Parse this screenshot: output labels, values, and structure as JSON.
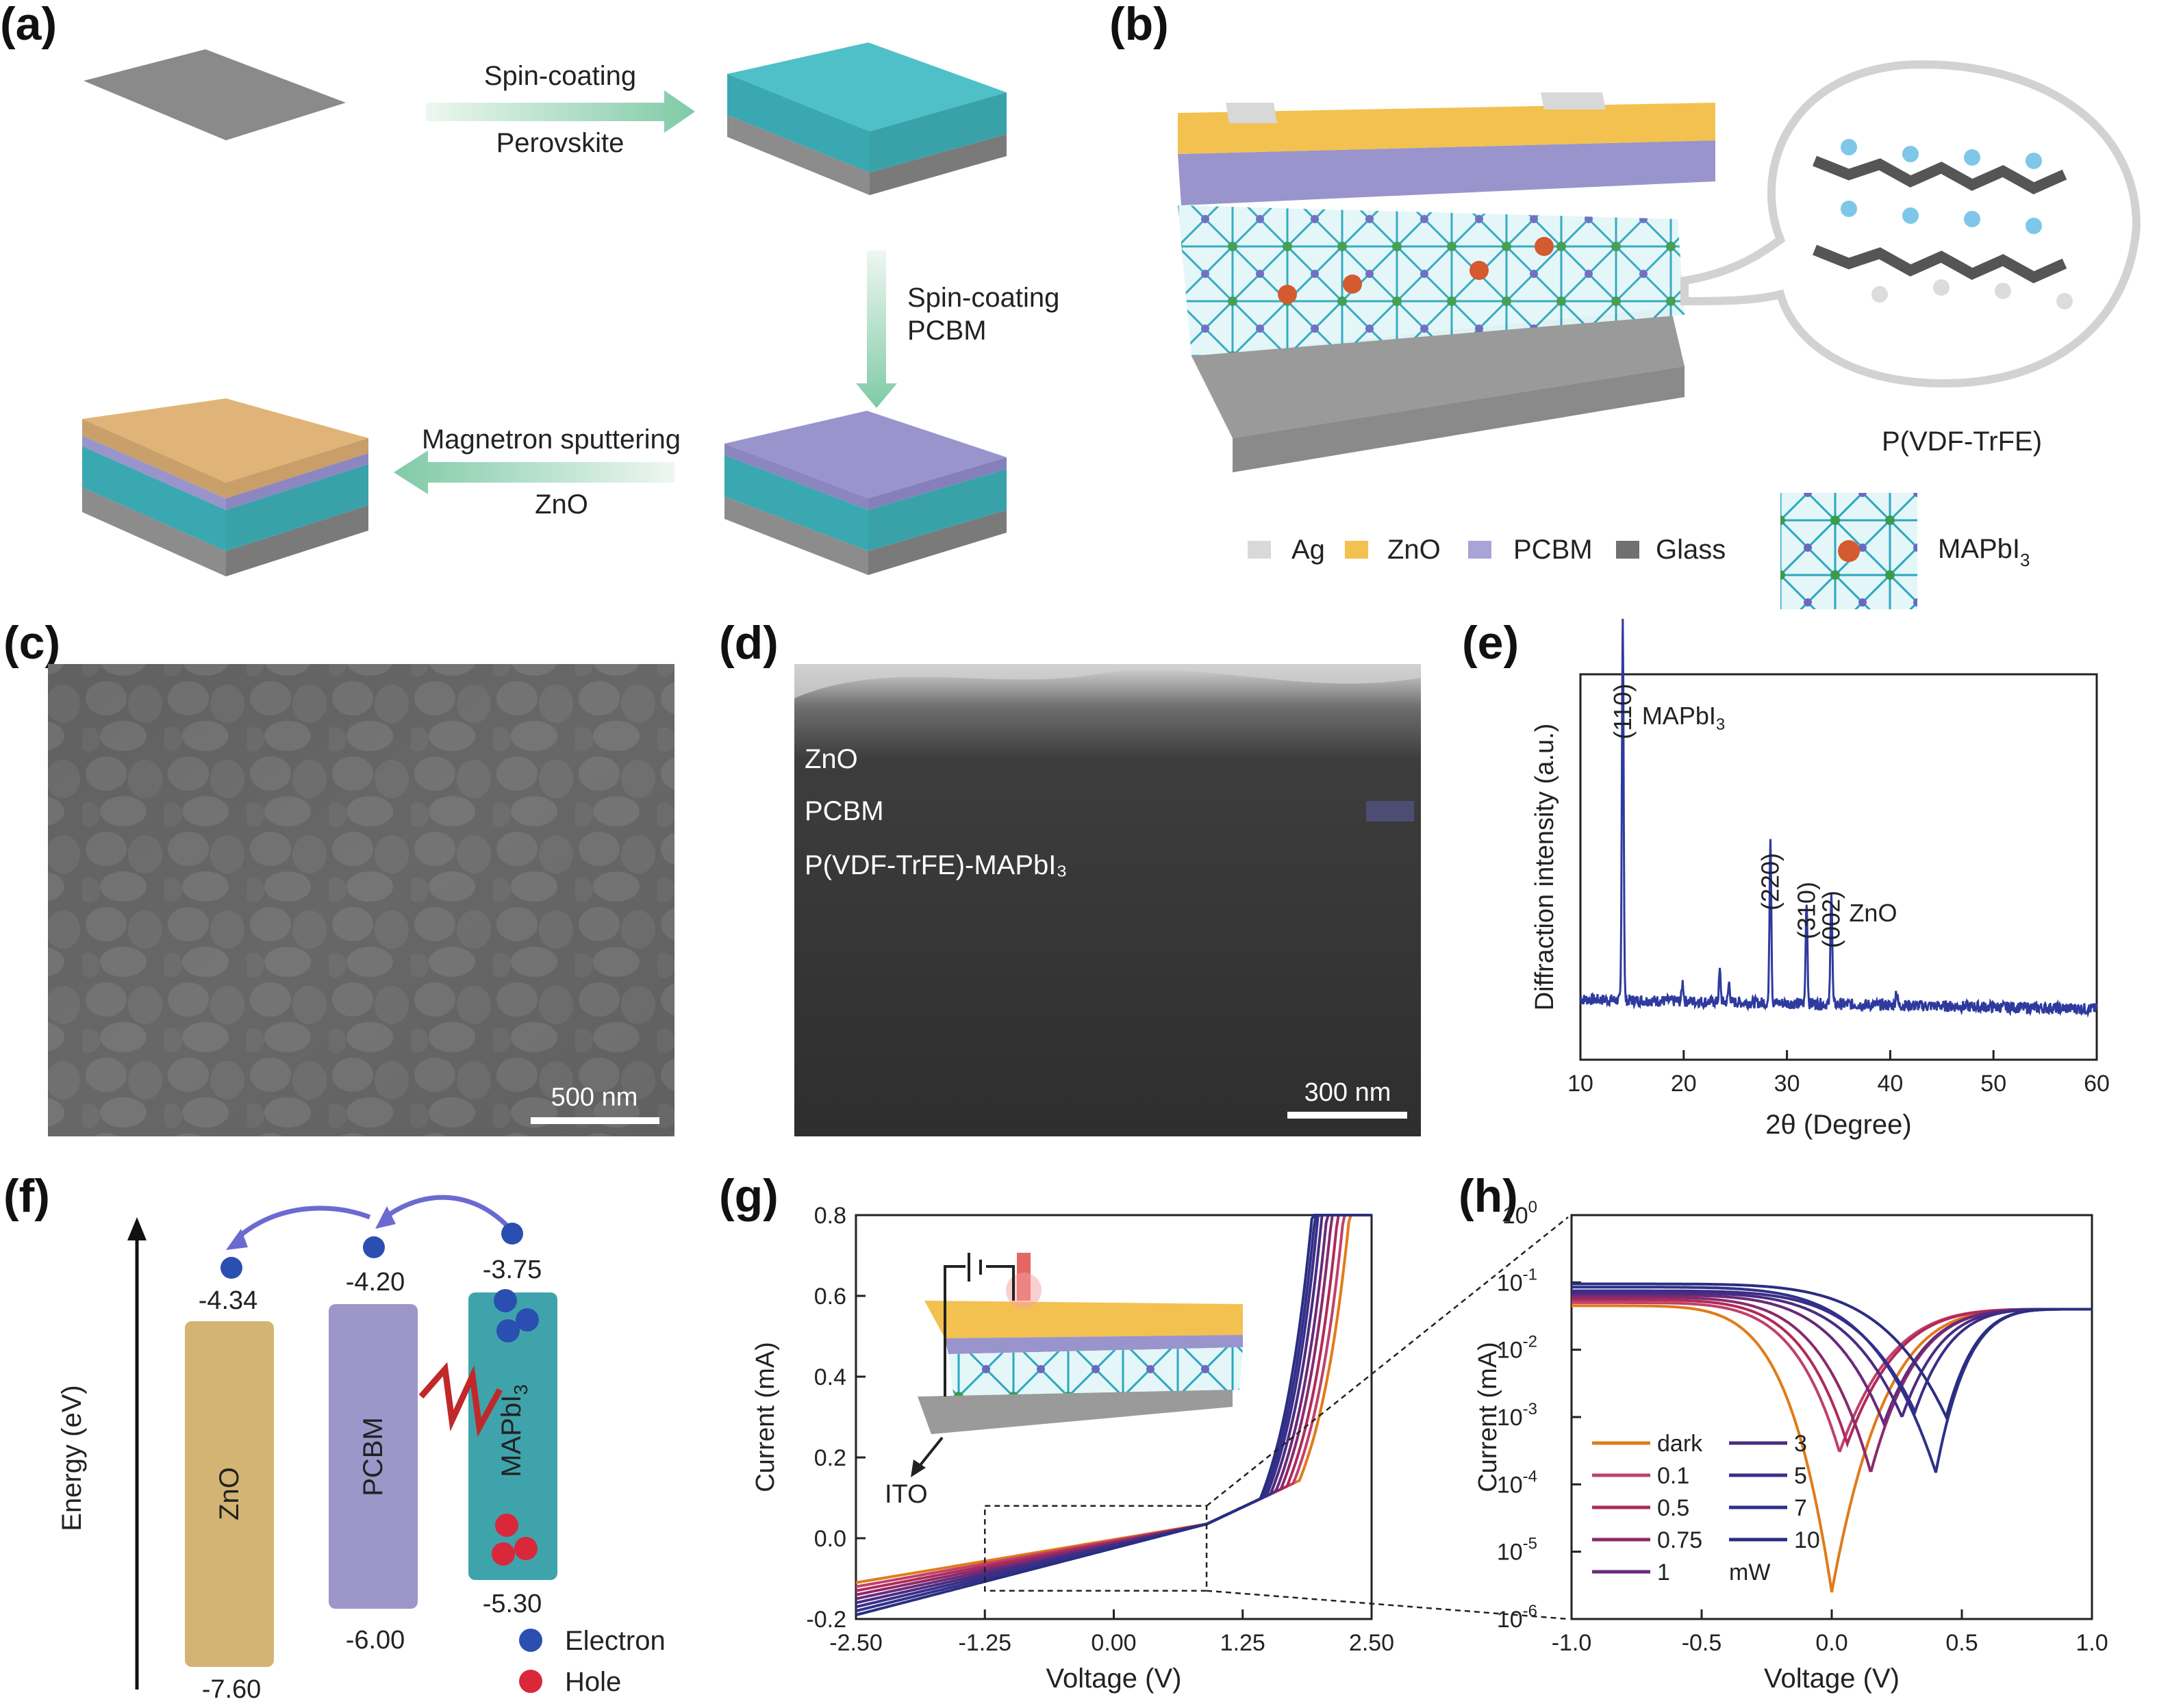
{
  "panels": {
    "a": {
      "label": "(a)",
      "step1_top": "Spin-coating",
      "step1_bottom": "Perovskite",
      "step2_top": "Spin-coating",
      "step2_bottom": "PCBM",
      "step3_top": "Magnetron sputtering",
      "step3_bottom": "ZnO"
    },
    "b": {
      "label": "(b)",
      "polymer_label": "P(VDF-TrFE)",
      "legend": [
        {
          "name": "Ag",
          "color": "#d9d9d9"
        },
        {
          "name": "ZnO",
          "color": "#f3c14f"
        },
        {
          "name": "PCBM",
          "color": "#a8a4d8"
        },
        {
          "name": "Glass",
          "color": "#707070"
        }
      ],
      "crystal_label": "MAPbI",
      "crystal_sub": "3"
    },
    "c": {
      "label": "(c)",
      "scale_bar": "500 nm"
    },
    "d": {
      "label": "(d)",
      "layer1": "ZnO",
      "layer2": "PCBM",
      "layer3": "P(VDF-TrFE)-MAPbI₃",
      "scale_bar": "300 nm"
    },
    "e": {
      "label": "(e)"
    },
    "f": {
      "label": "(f)",
      "axis_label": "Energy (eV)",
      "zno": "ZnO",
      "pcbm": "PCBM",
      "mapbi": "MAPbI",
      "mapbi_sub": "3",
      "zno_lumo": "-4.34",
      "zno_homo": "-7.60",
      "pcbm_lumo": "-4.20",
      "pcbm_homo": "-6.00",
      "mapbi_lumo": "-3.75",
      "mapbi_homo": "-5.30",
      "electron": "Electron",
      "hole": "Hole",
      "colors": {
        "zno": "#d4b472",
        "pcbm": "#9c97c8",
        "mapbi": "#3fa3ac",
        "electron": "#2a4fb0",
        "hole": "#d8283a"
      }
    },
    "g": {
      "label": "(g)",
      "ito": "ITO"
    },
    "h": {
      "label": "(h)",
      "legend_unit": "mW"
    }
  },
  "chart_data": [
    {
      "id": "xrd",
      "type": "line",
      "xlabel": "2θ (Degree)",
      "ylabel": "Diffraction intensity (a.u.)",
      "xlim": [
        10,
        60
      ],
      "xticks": [
        10,
        20,
        30,
        40,
        50,
        60
      ],
      "series": [
        {
          "color": "#2e3a9e",
          "peaks": [
            [
              14.1,
              1.0
            ],
            [
              19.9,
              0.05
            ],
            [
              23.5,
              0.08
            ],
            [
              24.4,
              0.05
            ],
            [
              28.4,
              0.44
            ],
            [
              31.9,
              0.27
            ],
            [
              34.3,
              0.3
            ],
            [
              40.6,
              0.04
            ]
          ]
        }
      ],
      "annotations": [
        {
          "text": "(110)",
          "x": 14.1
        },
        {
          "text": "MAPbI",
          "sub": "3",
          "x": 14.1
        },
        {
          "text": "(220)",
          "x": 28.4
        },
        {
          "text": "(310)",
          "x": 31.9
        },
        {
          "text": "(002)",
          "x": 34.3
        },
        {
          "text": "ZnO",
          "x": 34.3
        }
      ]
    },
    {
      "id": "iv_linear",
      "type": "line",
      "xlabel": "Voltage (V)",
      "ylabel": "Current (mA)",
      "xlim": [
        -2.5,
        2.5
      ],
      "ylim": [
        -0.2,
        0.8
      ],
      "xticks": [
        "-2.50",
        "-1.25",
        "0.00",
        "1.25",
        "2.50"
      ],
      "yticks": [
        "-0.2",
        "0.0",
        "0.2",
        "0.4",
        "0.6",
        "0.8"
      ],
      "series": [
        {
          "name": "dark",
          "color": "#e07b1a",
          "v_turn": 1.8,
          "i_at_minus": -0.11
        },
        {
          "name": "0.1",
          "color": "#c0406a",
          "v_turn": 1.74,
          "i_at_minus": -0.12
        },
        {
          "name": "0.5",
          "color": "#b02a5a",
          "v_turn": 1.68,
          "i_at_minus": -0.13
        },
        {
          "name": "0.75",
          "color": "#8a2a6a",
          "v_turn": 1.62,
          "i_at_minus": -0.14
        },
        {
          "name": "1",
          "color": "#6a2a7a",
          "v_turn": 1.57,
          "i_at_minus": -0.15
        },
        {
          "name": "3",
          "color": "#4a2c80",
          "v_turn": 1.52,
          "i_at_minus": -0.16
        },
        {
          "name": "5",
          "color": "#3a2e88",
          "v_turn": 1.48,
          "i_at_minus": -0.17
        },
        {
          "name": "7",
          "color": "#30308a",
          "v_turn": 1.45,
          "i_at_minus": -0.18
        },
        {
          "name": "10",
          "color": "#2a2e80",
          "v_turn": 1.42,
          "i_at_minus": -0.19
        }
      ]
    },
    {
      "id": "iv_log",
      "type": "line",
      "xlabel": "Voltage (V)",
      "ylabel": "Current (mA)",
      "xlim": [
        -1.0,
        1.0
      ],
      "ylim_log10": [
        -6,
        0
      ],
      "xticks": [
        "-1.0",
        "-0.5",
        "0.0",
        "0.5",
        "1.0"
      ],
      "yticks": [
        {
          "base": "10",
          "exp": "0"
        },
        {
          "base": "10",
          "exp": "-1"
        },
        {
          "base": "10",
          "exp": "-2"
        },
        {
          "base": "10",
          "exp": "-3"
        },
        {
          "base": "10",
          "exp": "-4"
        },
        {
          "base": "10",
          "exp": "-5"
        },
        {
          "base": "10",
          "exp": "-6"
        }
      ],
      "series": [
        {
          "name": "dark",
          "color": "#e07b1a",
          "v0": 0.0,
          "i_neg": 0.045,
          "i_min": 2.5e-06
        },
        {
          "name": "0.1",
          "color": "#c0406a",
          "v0": 0.03,
          "i_neg": 0.05,
          "i_min": 0.0003
        },
        {
          "name": "0.5",
          "color": "#b02a5a",
          "v0": 0.06,
          "i_neg": 0.055,
          "i_min": 0.0004
        },
        {
          "name": "0.75",
          "color": "#8a2a6a",
          "v0": 0.15,
          "i_neg": 0.06,
          "i_min": 0.00015
        },
        {
          "name": "1",
          "color": "#6a2a7a",
          "v0": 0.2,
          "i_neg": 0.065,
          "i_min": 0.0008
        },
        {
          "name": "3",
          "color": "#4a2c80",
          "v0": 0.27,
          "i_neg": 0.07,
          "i_min": 0.001
        },
        {
          "name": "5",
          "color": "#3a2e88",
          "v0": 0.32,
          "i_neg": 0.075,
          "i_min": 0.0012
        },
        {
          "name": "7",
          "color": "#30308a",
          "v0": 0.4,
          "i_neg": 0.085,
          "i_min": 0.00015
        },
        {
          "name": "10",
          "color": "#2a2e80",
          "v0": 0.44,
          "i_neg": 0.095,
          "i_min": 0.001
        }
      ]
    }
  ]
}
